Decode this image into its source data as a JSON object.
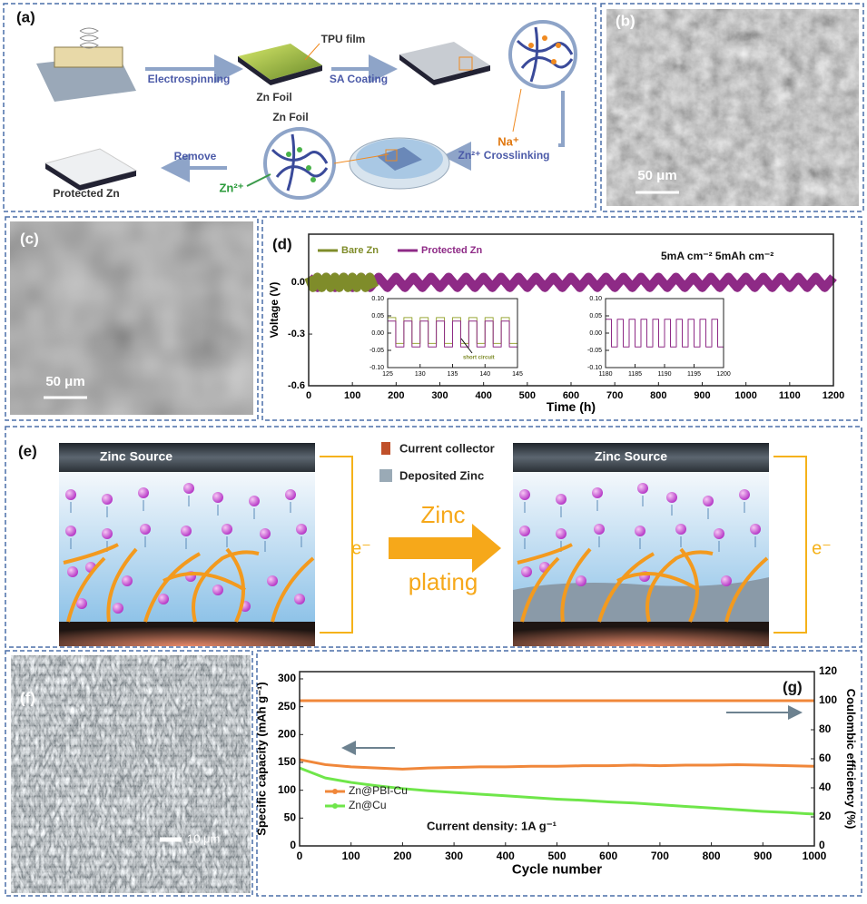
{
  "panel_labels": [
    "(a)",
    "(b)",
    "(c)",
    "(d)",
    "(e)",
    "(f)",
    "(g)"
  ],
  "scheme_a": {
    "electrospinning": "Electrospinning",
    "tpu_film": "TPU film",
    "zn_foil_top": "Zn Foil",
    "sa_coating": "SA Coating",
    "na_ion": "Na⁺",
    "zn_foil_bottom": "Zn Foil",
    "crosslinking": "Zn²⁺ Crosslinking",
    "zn_ion": "Zn²⁺",
    "remove": "Remove",
    "protected_zn": "Protected Zn"
  },
  "scale_bars": {
    "b": "50 μm",
    "c": "50 μm",
    "f": "10 μm"
  },
  "scheme_e": {
    "zinc_source_left": "Zinc Source",
    "zinc_source_right": "Zinc Source",
    "current_collector": "Current collector",
    "deposited_zinc": "Deposited Zinc",
    "arrow_top": "Zinc",
    "arrow_bottom": "plating",
    "electron_left": "e⁻",
    "electron_right": "e⁻"
  },
  "chart_data": [
    {
      "type": "line",
      "xlabel": "Time (h)",
      "ylabel": "Voltage (V)",
      "annotation": "5mA cm⁻² 5mAh cm⁻²",
      "legend": "top-left",
      "xlim": [
        0,
        1200
      ],
      "xticks": [
        0,
        100,
        200,
        300,
        400,
        500,
        600,
        700,
        800,
        900,
        1000,
        1100,
        1200
      ],
      "ylim": [
        -0.6,
        0.28
      ],
      "yticks": [
        {
          "value": 0,
          "label": "0.0"
        },
        -0.3,
        -0.6
      ],
      "series": [
        {
          "name": "Bare Zn",
          "color": "#7f8c2a",
          "x": [
            0,
            10,
            20,
            30,
            40,
            50,
            60,
            70,
            80,
            90,
            100,
            110,
            120,
            130,
            140,
            150
          ],
          "values": [
            0.03,
            -0.03,
            0.03,
            -0.03,
            0.03,
            -0.03,
            0.03,
            -0.03,
            0.03,
            -0.03,
            0.03,
            -0.03,
            0.03,
            -0.03,
            0.03,
            -0.03
          ]
        },
        {
          "name": "Protected Zn",
          "color": "#8e2a86",
          "x": [
            0,
            20,
            40,
            60,
            80,
            100,
            120,
            140,
            160,
            180,
            200,
            220,
            240,
            260,
            280,
            300,
            320,
            340,
            360,
            380,
            400,
            420,
            440,
            460,
            480,
            500,
            520,
            540,
            560,
            580,
            600,
            620,
            640,
            660,
            680,
            700,
            720,
            740,
            760,
            780,
            800,
            820,
            840,
            860,
            880,
            900,
            920,
            940,
            960,
            980,
            1000,
            1020,
            1040,
            1060,
            1080,
            1100,
            1120,
            1140,
            1160,
            1180,
            1200
          ],
          "values": [
            0.03,
            -0.03,
            0.03,
            -0.03,
            0.03,
            -0.03,
            0.03,
            -0.03,
            0.03,
            -0.03,
            0.03,
            -0.03,
            0.03,
            -0.03,
            0.03,
            -0.03,
            0.03,
            -0.03,
            0.03,
            -0.03,
            0.03,
            -0.03,
            0.03,
            -0.03,
            0.03,
            -0.03,
            0.03,
            -0.03,
            0.03,
            -0.03,
            0.03,
            -0.03,
            0.03,
            -0.03,
            0.03,
            -0.03,
            0.03,
            -0.03,
            0.03,
            -0.03,
            0.03,
            -0.03,
            0.03,
            -0.03,
            0.03,
            -0.03,
            0.03,
            -0.03,
            0.03,
            -0.03,
            0.03,
            -0.03,
            0.03,
            -0.03,
            0.03,
            -0.03,
            0.03,
            -0.03,
            0.03,
            -0.03,
            0.03
          ]
        }
      ]
    },
    {
      "type": "line",
      "step": true,
      "annotation": "short circuit",
      "xlim": [
        125,
        145
      ],
      "xticks": [
        125,
        130,
        135,
        140,
        145
      ],
      "ylim": [
        -0.1,
        0.1
      ],
      "yticks": [
        {
          "value": 0.1,
          "label": "0.10"
        },
        {
          "value": 0.05,
          "label": "0.05"
        },
        {
          "value": 0,
          "label": "0.00"
        },
        {
          "value": -0.05,
          "label": "-0.05"
        },
        {
          "value": -0.1,
          "label": "-0.10"
        }
      ],
      "series": [
        {
          "color": "#8e2a86",
          "x": [
            125,
            126.25,
            127.5,
            128.75,
            130,
            131.25,
            132.5,
            133.75,
            135,
            136.25,
            137.5,
            138.75,
            140,
            141.25,
            142.5,
            143.75,
            145
          ],
          "values": [
            0.035,
            -0.04,
            0.035,
            -0.04,
            0.035,
            -0.04,
            0.035,
            -0.04,
            0.035,
            -0.04,
            0.035,
            -0.04,
            0.035,
            -0.04,
            0.035,
            -0.04,
            0.035
          ]
        },
        {
          "color": "#9aa83a",
          "x": [
            125,
            126.25,
            127.5,
            128.75,
            130,
            131.25,
            132.5,
            133.75,
            135,
            136.25,
            137.5,
            138.75,
            140,
            141.25,
            142.5,
            143.75,
            145
          ],
          "values": [
            0.045,
            -0.03,
            0.045,
            -0.03,
            0.045,
            -0.03,
            0.045,
            -0.03,
            0.045,
            -0.03,
            0.045,
            -0.03,
            0.045,
            -0.03,
            0.045,
            -0.03,
            0.045
          ]
        }
      ]
    },
    {
      "type": "line",
      "step": true,
      "xlim": [
        1180,
        1200
      ],
      "xticks": [
        1180,
        1185,
        1190,
        1195,
        1200
      ],
      "ylim": [
        -0.1,
        0.1
      ],
      "yticks": [
        {
          "value": 0.1,
          "label": "0.10"
        },
        {
          "value": 0.05,
          "label": "0.05"
        },
        {
          "value": 0,
          "label": "0.00"
        },
        {
          "value": -0.05,
          "label": "-0.05"
        },
        {
          "value": -0.1,
          "label": "-0.10"
        }
      ],
      "series": [
        {
          "color": "#8e2a86",
          "x": [
            1180,
            1181,
            1182,
            1183,
            1184,
            1185,
            1186,
            1187,
            1188,
            1189,
            1190,
            1191,
            1192,
            1193,
            1194,
            1195,
            1196,
            1197,
            1198,
            1199,
            1200
          ],
          "values": [
            0.04,
            -0.04,
            0.04,
            -0.04,
            0.04,
            -0.04,
            0.04,
            -0.04,
            0.04,
            -0.04,
            0.04,
            -0.04,
            0.04,
            -0.04,
            0.04,
            -0.04,
            0.04,
            -0.04,
            0.04,
            -0.04,
            0.04
          ]
        }
      ]
    },
    {
      "type": "line",
      "xlabel": "Cycle number",
      "ylabel": "Specific capacity (mAh g⁻¹)",
      "y2label": "Coulombic efficiency (%)",
      "annotation": "Current density: 1A g⁻¹",
      "legend": "bottom-left",
      "xlim": [
        0,
        1000
      ],
      "xticks": [
        0,
        100,
        200,
        300,
        400,
        500,
        600,
        700,
        800,
        900,
        1000
      ],
      "ylim": [
        0,
        313
      ],
      "yticks": [
        0,
        50,
        100,
        150,
        200,
        250,
        300
      ],
      "y2lim": [
        0,
        120
      ],
      "y2ticks": [
        0,
        20,
        40,
        60,
        80,
        100,
        120
      ],
      "x": [
        0,
        50,
        100,
        150,
        200,
        250,
        300,
        350,
        400,
        450,
        500,
        550,
        600,
        650,
        700,
        750,
        800,
        850,
        900,
        950,
        1000
      ],
      "series": [
        {
          "name": "Zn@PBI-Cu",
          "color": "#f0873a",
          "values": [
            155,
            146,
            142,
            140,
            138,
            140,
            141,
            142,
            142,
            143,
            143,
            144,
            144,
            145,
            144,
            145,
            145,
            146,
            145,
            144,
            143
          ]
        },
        {
          "name": "Zn@Cu",
          "color": "#6fe64a",
          "values": [
            140,
            122,
            114,
            108,
            103,
            99,
            96,
            93,
            90,
            87,
            84,
            82,
            79,
            77,
            74,
            71,
            68,
            65,
            62,
            60,
            57
          ]
        },
        {
          "color": "#f0873a",
          "axis": "y2",
          "values": [
            100,
            100,
            100,
            100,
            100,
            100,
            100,
            100,
            100,
            100,
            100,
            100,
            100,
            100,
            100,
            100,
            100,
            100,
            100,
            100,
            100
          ]
        }
      ]
    }
  ]
}
